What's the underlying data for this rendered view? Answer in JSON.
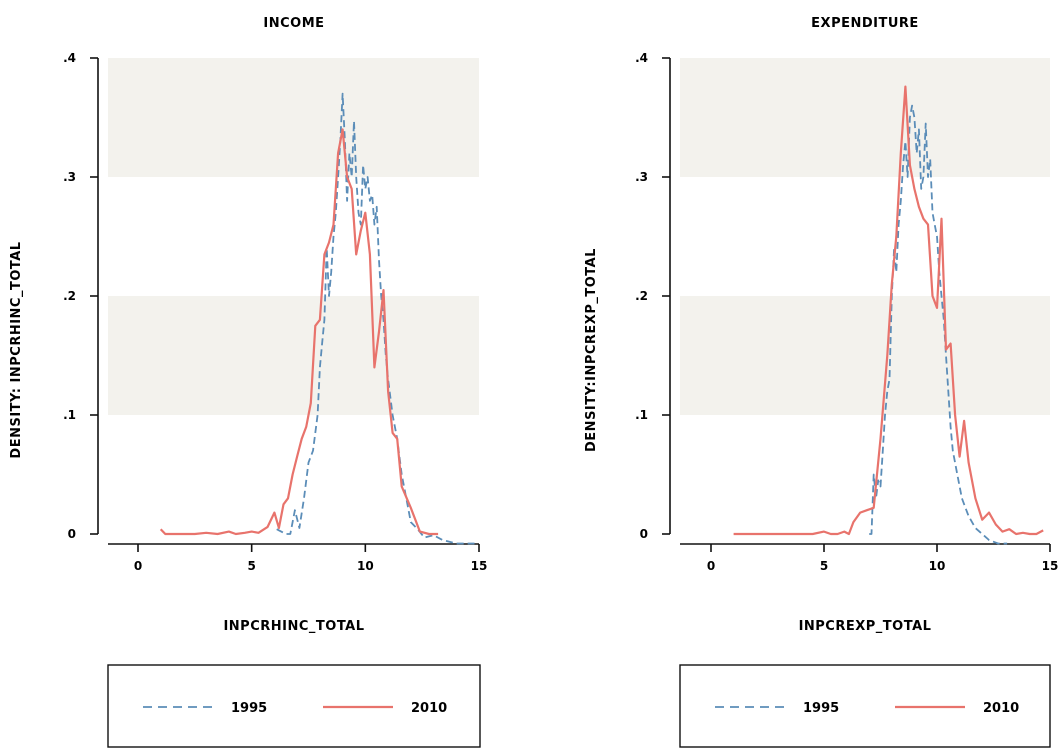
{
  "chart_data": [
    {
      "type": "line",
      "title": "INCOME",
      "xlabel": "INPCRHINC_TOTAL",
      "ylabel": "DENSITY: INPCRHINC_TOTAL",
      "xlim": [
        0,
        15
      ],
      "ylim": [
        0,
        0.4
      ],
      "xticks": [
        0,
        5,
        10,
        15
      ],
      "xtick_labels": [
        "0",
        "5",
        "10",
        "15"
      ],
      "yticks": [
        0,
        0.1,
        0.2,
        0.3,
        0.4
      ],
      "ytick_labels": [
        "0",
        ".1",
        ".2",
        ".3",
        ".4"
      ],
      "legend_position": "bottom",
      "series": [
        {
          "name": "1995",
          "color": "#5b8db8",
          "dash": true,
          "points": [
            [
              6.1,
              0.004
            ],
            [
              6.3,
              0.002
            ],
            [
              6.5,
              0
            ],
            [
              6.7,
              0
            ],
            [
              6.9,
              0.02
            ],
            [
              7.1,
              0.005
            ],
            [
              7.3,
              0.03
            ],
            [
              7.5,
              0.06
            ],
            [
              7.7,
              0.07
            ],
            [
              7.9,
              0.1
            ],
            [
              8.0,
              0.14
            ],
            [
              8.1,
              0.16
            ],
            [
              8.2,
              0.18
            ],
            [
              8.3,
              0.24
            ],
            [
              8.4,
              0.2
            ],
            [
              8.5,
              0.22
            ],
            [
              8.6,
              0.25
            ],
            [
              8.7,
              0.27
            ],
            [
              8.8,
              0.3
            ],
            [
              8.9,
              0.33
            ],
            [
              9.0,
              0.37
            ],
            [
              9.1,
              0.33
            ],
            [
              9.2,
              0.28
            ],
            [
              9.3,
              0.32
            ],
            [
              9.4,
              0.3
            ],
            [
              9.5,
              0.347
            ],
            [
              9.6,
              0.3
            ],
            [
              9.7,
              0.27
            ],
            [
              9.8,
              0.26
            ],
            [
              9.9,
              0.31
            ],
            [
              10.0,
              0.29
            ],
            [
              10.1,
              0.3
            ],
            [
              10.2,
              0.28
            ],
            [
              10.3,
              0.285
            ],
            [
              10.4,
              0.26
            ],
            [
              10.5,
              0.275
            ],
            [
              10.6,
              0.23
            ],
            [
              10.7,
              0.2
            ],
            [
              10.8,
              0.18
            ],
            [
              10.9,
              0.15
            ],
            [
              11.0,
              0.13
            ],
            [
              11.2,
              0.1
            ],
            [
              11.4,
              0.08
            ],
            [
              11.6,
              0.05
            ],
            [
              11.8,
              0.03
            ],
            [
              12.0,
              0.01
            ],
            [
              12.3,
              0.004
            ],
            [
              12.6,
              -0.003
            ],
            [
              13.0,
              -0.001
            ],
            [
              13.4,
              -0.005
            ],
            [
              14.0,
              -0.008
            ],
            [
              14.8,
              -0.008
            ]
          ]
        },
        {
          "name": "2010",
          "color": "#e8736c",
          "dash": false,
          "points": [
            [
              1.0,
              0.004
            ],
            [
              1.2,
              0
            ],
            [
              1.5,
              0
            ],
            [
              2.0,
              0
            ],
            [
              2.5,
              0
            ],
            [
              3.0,
              0.001
            ],
            [
              3.5,
              0
            ],
            [
              4.0,
              0.002
            ],
            [
              4.3,
              0
            ],
            [
              4.7,
              0.001
            ],
            [
              5.0,
              0.002
            ],
            [
              5.3,
              0.001
            ],
            [
              5.7,
              0.006
            ],
            [
              6.0,
              0.018
            ],
            [
              6.2,
              0.005
            ],
            [
              6.4,
              0.025
            ],
            [
              6.6,
              0.03
            ],
            [
              6.8,
              0.05
            ],
            [
              7.0,
              0.065
            ],
            [
              7.2,
              0.08
            ],
            [
              7.4,
              0.09
            ],
            [
              7.6,
              0.11
            ],
            [
              7.8,
              0.175
            ],
            [
              8.0,
              0.18
            ],
            [
              8.2,
              0.235
            ],
            [
              8.4,
              0.245
            ],
            [
              8.6,
              0.26
            ],
            [
              8.8,
              0.32
            ],
            [
              9.0,
              0.34
            ],
            [
              9.2,
              0.3
            ],
            [
              9.4,
              0.29
            ],
            [
              9.6,
              0.235
            ],
            [
              9.8,
              0.255
            ],
            [
              10.0,
              0.27
            ],
            [
              10.2,
              0.235
            ],
            [
              10.4,
              0.14
            ],
            [
              10.6,
              0.17
            ],
            [
              10.8,
              0.205
            ],
            [
              11.0,
              0.12
            ],
            [
              11.2,
              0.085
            ],
            [
              11.4,
              0.08
            ],
            [
              11.6,
              0.04
            ],
            [
              12.0,
              0.022
            ],
            [
              12.4,
              0.002
            ],
            [
              12.8,
              0
            ],
            [
              13.2,
              0
            ]
          ]
        }
      ]
    },
    {
      "type": "line",
      "title": "EXPENDITURE",
      "xlabel": "INPCREXP_TOTAL",
      "ylabel": "DENSITY:INPCREXP_TOTAL",
      "xlim": [
        0,
        15
      ],
      "ylim": [
        0,
        0.4
      ],
      "xticks": [
        0,
        5,
        10,
        15
      ],
      "xtick_labels": [
        "0",
        "5",
        "10",
        "15"
      ],
      "yticks": [
        0,
        0.1,
        0.2,
        0.3,
        0.4
      ],
      "ytick_labels": [
        "0",
        ".1",
        ".2",
        ".3",
        ".4"
      ],
      "legend_position": "bottom",
      "series": [
        {
          "name": "1995",
          "color": "#5b8db8",
          "dash": true,
          "points": [
            [
              7.0,
              0
            ],
            [
              7.1,
              0
            ],
            [
              7.2,
              0.05
            ],
            [
              7.3,
              0.03
            ],
            [
              7.4,
              0.045
            ],
            [
              7.5,
              0.04
            ],
            [
              7.6,
              0.07
            ],
            [
              7.7,
              0.1
            ],
            [
              7.8,
              0.12
            ],
            [
              7.9,
              0.13
            ],
            [
              8.0,
              0.2
            ],
            [
              8.1,
              0.24
            ],
            [
              8.2,
              0.22
            ],
            [
              8.3,
              0.26
            ],
            [
              8.4,
              0.28
            ],
            [
              8.5,
              0.31
            ],
            [
              8.6,
              0.33
            ],
            [
              8.7,
              0.3
            ],
            [
              8.8,
              0.35
            ],
            [
              8.9,
              0.36
            ],
            [
              9.0,
              0.35
            ],
            [
              9.1,
              0.32
            ],
            [
              9.2,
              0.34
            ],
            [
              9.3,
              0.29
            ],
            [
              9.4,
              0.3
            ],
            [
              9.5,
              0.345
            ],
            [
              9.6,
              0.3
            ],
            [
              9.7,
              0.315
            ],
            [
              9.8,
              0.27
            ],
            [
              9.9,
              0.26
            ],
            [
              10.0,
              0.25
            ],
            [
              10.1,
              0.22
            ],
            [
              10.2,
              0.2
            ],
            [
              10.3,
              0.18
            ],
            [
              10.4,
              0.15
            ],
            [
              10.5,
              0.12
            ],
            [
              10.6,
              0.09
            ],
            [
              10.7,
              0.07
            ],
            [
              10.9,
              0.05
            ],
            [
              11.1,
              0.03
            ],
            [
              11.4,
              0.015
            ],
            [
              11.7,
              0.005
            ],
            [
              12.0,
              0
            ],
            [
              12.3,
              -0.005
            ],
            [
              12.7,
              -0.008
            ],
            [
              13.1,
              -0.008
            ]
          ]
        },
        {
          "name": "2010",
          "color": "#e8736c",
          "dash": false,
          "points": [
            [
              1.0,
              0
            ],
            [
              1.5,
              0
            ],
            [
              2.0,
              0
            ],
            [
              2.5,
              0
            ],
            [
              3.0,
              0
            ],
            [
              3.5,
              0
            ],
            [
              4.0,
              0
            ],
            [
              4.5,
              0
            ],
            [
              5.0,
              0.002
            ],
            [
              5.3,
              0
            ],
            [
              5.6,
              0
            ],
            [
              5.9,
              0.002
            ],
            [
              6.1,
              0
            ],
            [
              6.3,
              0.01
            ],
            [
              6.6,
              0.018
            ],
            [
              6.9,
              0.02
            ],
            [
              7.2,
              0.022
            ],
            [
              7.5,
              0.08
            ],
            [
              7.8,
              0.15
            ],
            [
              8.0,
              0.21
            ],
            [
              8.2,
              0.25
            ],
            [
              8.4,
              0.32
            ],
            [
              8.6,
              0.376
            ],
            [
              8.8,
              0.31
            ],
            [
              9.0,
              0.29
            ],
            [
              9.2,
              0.275
            ],
            [
              9.4,
              0.265
            ],
            [
              9.6,
              0.26
            ],
            [
              9.8,
              0.2
            ],
            [
              10.0,
              0.19
            ],
            [
              10.2,
              0.265
            ],
            [
              10.4,
              0.155
            ],
            [
              10.6,
              0.16
            ],
            [
              10.8,
              0.1
            ],
            [
              11.0,
              0.065
            ],
            [
              11.2,
              0.095
            ],
            [
              11.4,
              0.06
            ],
            [
              11.7,
              0.03
            ],
            [
              12.0,
              0.012
            ],
            [
              12.3,
              0.018
            ],
            [
              12.6,
              0.008
            ],
            [
              12.9,
              0.002
            ],
            [
              13.2,
              0.004
            ],
            [
              13.5,
              0
            ],
            [
              13.8,
              0.001
            ],
            [
              14.1,
              0
            ],
            [
              14.4,
              0
            ],
            [
              14.7,
              0.003
            ]
          ]
        }
      ]
    }
  ]
}
